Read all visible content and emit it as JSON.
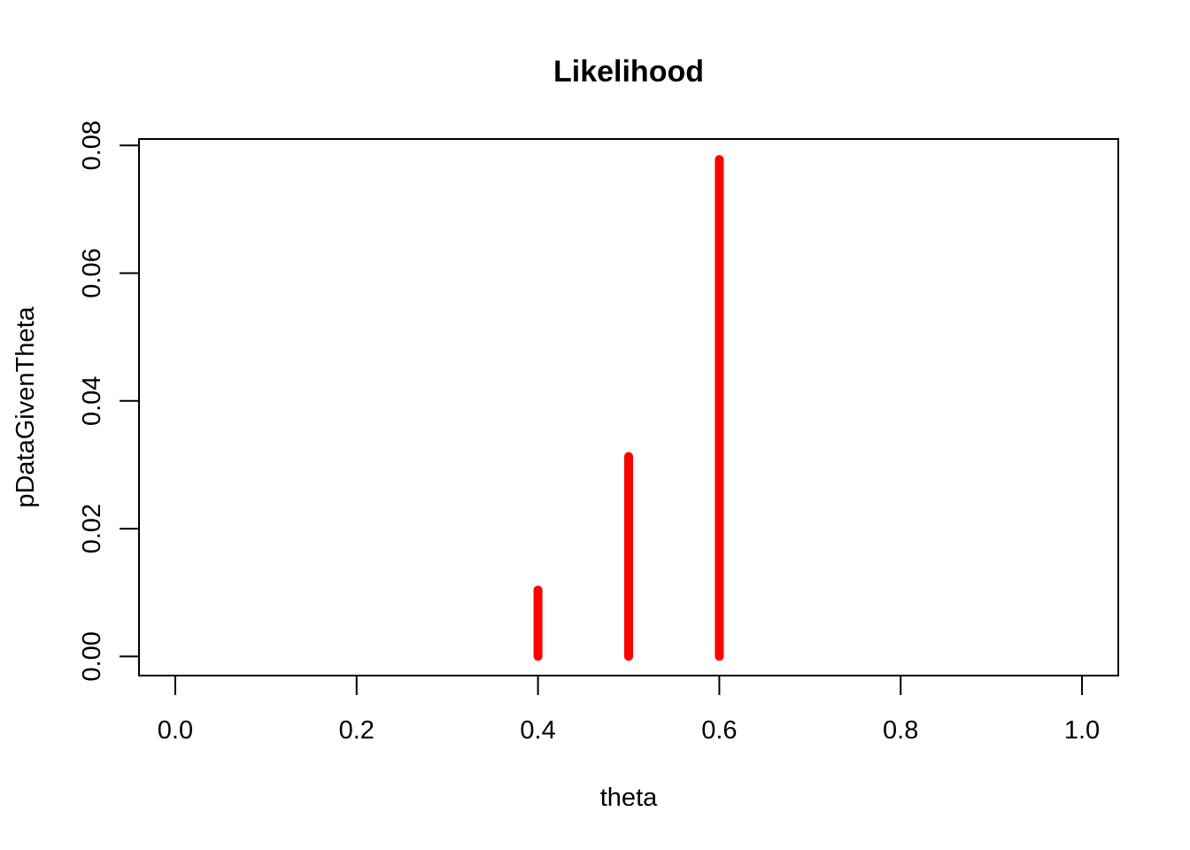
{
  "chart_data": {
    "type": "bar",
    "title": "Likelihood",
    "xlabel": "theta",
    "ylabel": "pDataGivenTheta",
    "xlim": [
      -0.04,
      1.04
    ],
    "ylim": [
      -0.003,
      0.081
    ],
    "x_ticks": [
      0.0,
      0.2,
      0.4,
      0.6,
      0.8,
      1.0
    ],
    "x_tick_labels": [
      "0.0",
      "0.2",
      "0.4",
      "0.6",
      "0.8",
      "1.0"
    ],
    "y_ticks": [
      0.0,
      0.02,
      0.04,
      0.06,
      0.08
    ],
    "y_tick_labels": [
      "0.00",
      "0.02",
      "0.04",
      "0.06",
      "0.08"
    ],
    "grid": false,
    "series": [
      {
        "color": "#ff0000",
        "x": [
          0.4,
          0.5,
          0.6
        ],
        "values": [
          0.0104,
          0.0313,
          0.0778
        ]
      }
    ]
  }
}
